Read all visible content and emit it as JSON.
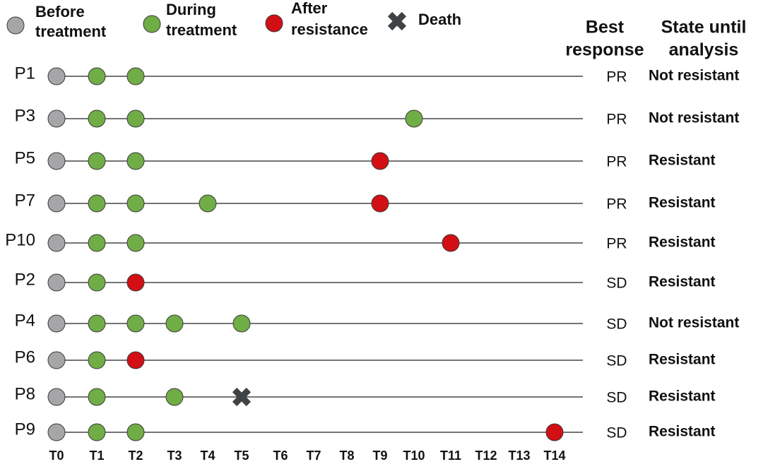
{
  "legend": [
    {
      "lines": [
        "Before",
        "treatment"
      ],
      "color": "#a6a6a8"
    },
    {
      "lines": [
        "During",
        "treatment"
      ],
      "color": "#5a8f3c"
    },
    {
      "lines": [
        "After",
        "resistance"
      ],
      "color": "#d10f14"
    },
    {
      "lines": [
        "Death"
      ],
      "color": "#3f4346"
    }
  ],
  "headers": {
    "best_response": [
      "Best",
      "response"
    ],
    "state": [
      "State until",
      "analysis"
    ]
  },
  "timepoints": [
    "T0",
    "T1",
    "T2",
    "T3",
    "T4",
    "T5",
    "T6",
    "T7",
    "T8",
    "T9",
    "T10",
    "T11",
    "T12",
    "T13",
    "T14"
  ],
  "patients": [
    {
      "label": "P1",
      "events": [
        {
          "t": 0,
          "legend": 0
        },
        {
          "t": 1,
          "legend": 1
        },
        {
          "t": 2,
          "legend": 1
        }
      ],
      "best_response": "PR",
      "state": "Not resistant"
    },
    {
      "label": "P3",
      "events": [
        {
          "t": 0,
          "legend": 0
        },
        {
          "t": 1,
          "legend": 1
        },
        {
          "t": 2,
          "legend": 1
        },
        {
          "t": 10,
          "legend": 1
        }
      ],
      "best_response": "PR",
      "state": "Not resistant"
    },
    {
      "label": "P5",
      "events": [
        {
          "t": 0,
          "legend": 0
        },
        {
          "t": 1,
          "legend": 1
        },
        {
          "t": 2,
          "legend": 1
        },
        {
          "t": 9,
          "legend": 2
        }
      ],
      "best_response": "PR",
      "state": "Resistant"
    },
    {
      "label": "P7",
      "events": [
        {
          "t": 0,
          "legend": 0
        },
        {
          "t": 1,
          "legend": 1
        },
        {
          "t": 2,
          "legend": 1
        },
        {
          "t": 4,
          "legend": 1
        },
        {
          "t": 9,
          "legend": 2
        }
      ],
      "best_response": "PR",
      "state": "Resistant"
    },
    {
      "label": "P10",
      "events": [
        {
          "t": 0,
          "legend": 0
        },
        {
          "t": 1,
          "legend": 1
        },
        {
          "t": 2,
          "legend": 1
        },
        {
          "t": 11,
          "legend": 2
        }
      ],
      "best_response": "PR",
      "state": "Resistant"
    },
    {
      "label": "P2",
      "events": [
        {
          "t": 0,
          "legend": 0
        },
        {
          "t": 1,
          "legend": 1
        },
        {
          "t": 2,
          "legend": 2
        }
      ],
      "best_response": "SD",
      "state": "Resistant"
    },
    {
      "label": "P4",
      "events": [
        {
          "t": 0,
          "legend": 0
        },
        {
          "t": 1,
          "legend": 1
        },
        {
          "t": 2,
          "legend": 1
        },
        {
          "t": 3,
          "legend": 1
        },
        {
          "t": 5,
          "legend": 1
        }
      ],
      "best_response": "SD",
      "state": "Not resistant"
    },
    {
      "label": "P6",
      "events": [
        {
          "t": 0,
          "legend": 0
        },
        {
          "t": 1,
          "legend": 1
        },
        {
          "t": 2,
          "legend": 2
        }
      ],
      "best_response": "SD",
      "state": "Resistant"
    },
    {
      "label": "P8",
      "events": [
        {
          "t": 0,
          "legend": 0
        },
        {
          "t": 1,
          "legend": 1
        },
        {
          "t": 3,
          "legend": 1
        },
        {
          "t": 5,
          "legend": 3
        }
      ],
      "best_response": "SD",
      "state": "Resistant"
    },
    {
      "label": "P9",
      "events": [
        {
          "t": 0,
          "legend": 0
        },
        {
          "t": 1,
          "legend": 1
        },
        {
          "t": 2,
          "legend": 1
        },
        {
          "t": 14,
          "legend": 2
        }
      ],
      "best_response": "SD",
      "state": "Resistant"
    }
  ]
}
